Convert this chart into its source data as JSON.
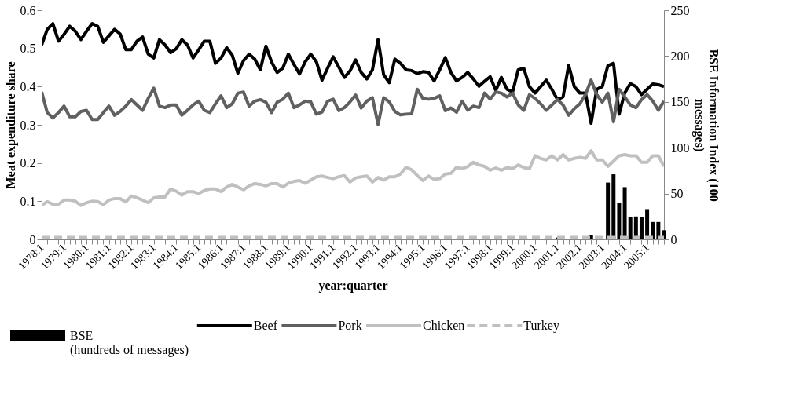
{
  "chart_data": {
    "type": "line",
    "categories": [
      "1978:1",
      null,
      null,
      null,
      "1979:1",
      null,
      null,
      null,
      "1980:1",
      null,
      null,
      null,
      "1981:1",
      null,
      null,
      null,
      "1982:1",
      null,
      null,
      null,
      "1983:1",
      null,
      null,
      null,
      "1984:1",
      null,
      null,
      null,
      "1985:1",
      null,
      null,
      null,
      "1986:1",
      null,
      null,
      null,
      "1987:1",
      null,
      null,
      null,
      "1988:1",
      null,
      null,
      null,
      "1989:1",
      null,
      null,
      null,
      "1990:1",
      null,
      null,
      null,
      "1991:1",
      null,
      null,
      null,
      "1992:1",
      null,
      null,
      null,
      "1993:1",
      null,
      null,
      null,
      "1994:1",
      null,
      null,
      null,
      "1995:1",
      null,
      null,
      null,
      "1996:1",
      null,
      null,
      null,
      "1997:1",
      null,
      null,
      null,
      "1998:1",
      null,
      null,
      null,
      "1999:1",
      null,
      null,
      null,
      "2000:1",
      null,
      null,
      null,
      "2001:1",
      null,
      null,
      null,
      "2002:1",
      null,
      null,
      null,
      "2003:1",
      null,
      null,
      null,
      "2004:1",
      null,
      null,
      null,
      "2005:1",
      null,
      null,
      null
    ],
    "xlabel": "year:quarter",
    "ylabel": "Meat expenditure share",
    "y2label": "BSE Information Index (100 messages)",
    "ylim": [
      0,
      0.6
    ],
    "yticks": [
      0,
      0.1,
      0.2,
      0.3,
      0.4,
      0.5,
      0.6
    ],
    "y2lim": [
      0,
      250
    ],
    "y2ticks": [
      0,
      50,
      100,
      150,
      200,
      250
    ],
    "legend": "bottom",
    "line_style": "solid",
    "series": [
      {
        "name": "BSE\n(hundreds of messages)",
        "type": "bar",
        "axis": "y2",
        "color": "#000000",
        "values": [
          0,
          0,
          0,
          0,
          0,
          0,
          0,
          0,
          0,
          0,
          0,
          0,
          0,
          0,
          0,
          0,
          0,
          0,
          0,
          0,
          0,
          0,
          0,
          0,
          0,
          0,
          0,
          0,
          0,
          0,
          0,
          0,
          0,
          0,
          0,
          0,
          0,
          0,
          0,
          0,
          0,
          0,
          0,
          0,
          0,
          0,
          0,
          0,
          0,
          0,
          0,
          0,
          0,
          0,
          0,
          0,
          0,
          0,
          0,
          0,
          0,
          0,
          0,
          0,
          0,
          0,
          0,
          0,
          0,
          0,
          0,
          0,
          0,
          0,
          0,
          0,
          0,
          0,
          0,
          0,
          0,
          0,
          0,
          0,
          0,
          0,
          0,
          0,
          0,
          0,
          0,
          0,
          2,
          0,
          0,
          0,
          0,
          0,
          5,
          0,
          0,
          62,
          71,
          40,
          57,
          24,
          25,
          24,
          33,
          19,
          19,
          10
        ]
      },
      {
        "name": "Beef",
        "type": "line",
        "color": "#000000",
        "values": [
          0.509,
          0.55,
          0.565,
          0.519,
          0.537,
          0.558,
          0.545,
          0.523,
          0.545,
          0.565,
          0.558,
          0.516,
          0.533,
          0.55,
          0.538,
          0.497,
          0.497,
          0.519,
          0.53,
          0.485,
          0.475,
          0.523,
          0.509,
          0.489,
          0.499,
          0.523,
          0.509,
          0.475,
          0.496,
          0.519,
          0.519,
          0.461,
          0.475,
          0.502,
          0.482,
          0.435,
          0.468,
          0.485,
          0.472,
          0.444,
          0.506,
          0.465,
          0.437,
          0.448,
          0.485,
          0.458,
          0.433,
          0.465,
          0.485,
          0.465,
          0.417,
          0.448,
          0.478,
          0.451,
          0.424,
          0.441,
          0.47,
          0.437,
          0.42,
          0.444,
          0.523,
          0.431,
          0.41,
          0.472,
          0.461,
          0.444,
          0.442,
          0.434,
          0.439,
          0.437,
          0.415,
          0.444,
          0.476,
          0.437,
          0.415,
          0.424,
          0.437,
          0.42,
          0.401,
          0.414,
          0.426,
          0.39,
          0.424,
          0.393,
          0.386,
          0.444,
          0.448,
          0.4,
          0.383,
          0.4,
          0.417,
          0.393,
          0.366,
          0.373,
          0.456,
          0.4,
          0.383,
          0.383,
          0.304,
          0.393,
          0.4,
          0.455,
          0.461,
          0.328,
          0.383,
          0.408,
          0.4,
          0.379,
          0.393,
          0.407,
          0.405,
          0.4
        ]
      },
      {
        "name": "Pork",
        "type": "line",
        "color": "#606060",
        "values": [
          0.386,
          0.332,
          0.318,
          0.332,
          0.349,
          0.321,
          0.321,
          0.335,
          0.338,
          0.314,
          0.314,
          0.332,
          0.349,
          0.325,
          0.335,
          0.349,
          0.366,
          0.352,
          0.338,
          0.369,
          0.396,
          0.349,
          0.345,
          0.352,
          0.352,
          0.325,
          0.338,
          0.352,
          0.362,
          0.338,
          0.332,
          0.355,
          0.376,
          0.345,
          0.355,
          0.383,
          0.386,
          0.349,
          0.362,
          0.366,
          0.359,
          0.332,
          0.359,
          0.367,
          0.383,
          0.345,
          0.352,
          0.362,
          0.36,
          0.328,
          0.333,
          0.362,
          0.367,
          0.337,
          0.345,
          0.36,
          0.378,
          0.344,
          0.362,
          0.371,
          0.301,
          0.371,
          0.36,
          0.335,
          0.326,
          0.328,
          0.329,
          0.393,
          0.369,
          0.367,
          0.369,
          0.376,
          0.337,
          0.344,
          0.333,
          0.362,
          0.338,
          0.349,
          0.345,
          0.383,
          0.367,
          0.386,
          0.383,
          0.373,
          0.383,
          0.352,
          0.338,
          0.379,
          0.369,
          0.355,
          0.338,
          0.352,
          0.366,
          0.352,
          0.325,
          0.342,
          0.355,
          0.379,
          0.417,
          0.379,
          0.359,
          0.383,
          0.308,
          0.393,
          0.373,
          0.352,
          0.345,
          0.366,
          0.379,
          0.362,
          0.338,
          0.362
        ]
      },
      {
        "name": "Chicken",
        "type": "line",
        "color": "#c0c0c0",
        "values": [
          0.089,
          0.099,
          0.092,
          0.092,
          0.103,
          0.103,
          0.1,
          0.089,
          0.096,
          0.1,
          0.099,
          0.091,
          0.103,
          0.107,
          0.107,
          0.098,
          0.114,
          0.109,
          0.103,
          0.096,
          0.109,
          0.111,
          0.111,
          0.132,
          0.126,
          0.116,
          0.125,
          0.125,
          0.12,
          0.128,
          0.132,
          0.132,
          0.125,
          0.137,
          0.144,
          0.137,
          0.13,
          0.14,
          0.146,
          0.144,
          0.14,
          0.146,
          0.146,
          0.137,
          0.147,
          0.152,
          0.154,
          0.147,
          0.155,
          0.164,
          0.166,
          0.162,
          0.159,
          0.164,
          0.167,
          0.15,
          0.161,
          0.164,
          0.166,
          0.15,
          0.162,
          0.155,
          0.164,
          0.164,
          0.171,
          0.189,
          0.182,
          0.167,
          0.154,
          0.166,
          0.157,
          0.159,
          0.171,
          0.173,
          0.189,
          0.185,
          0.191,
          0.202,
          0.195,
          0.191,
          0.181,
          0.187,
          0.181,
          0.188,
          0.185,
          0.195,
          0.188,
          0.185,
          0.219,
          0.212,
          0.208,
          0.219,
          0.208,
          0.222,
          0.208,
          0.212,
          0.215,
          0.212,
          0.232,
          0.208,
          0.208,
          0.191,
          0.205,
          0.219,
          0.222,
          0.219,
          0.219,
          0.202,
          0.202,
          0.219,
          0.219,
          0.191
        ]
      },
      {
        "name": "Turkey",
        "type": "line",
        "color": "#c0c0c0",
        "line_style": "dashed",
        "values": [
          0.005,
          0.005,
          0.005,
          0.005,
          0.005,
          0.005,
          0.005,
          0.005,
          0.005,
          0.005,
          0.005,
          0.005,
          0.005,
          0.005,
          0.005,
          0.005,
          0.005,
          0.005,
          0.005,
          0.005,
          0.005,
          0.005,
          0.005,
          0.005,
          0.005,
          0.005,
          0.005,
          0.005,
          0.005,
          0.005,
          0.005,
          0.005,
          0.005,
          0.005,
          0.005,
          0.005,
          0.005,
          0.005,
          0.005,
          0.005,
          0.005,
          0.005,
          0.005,
          0.005,
          0.005,
          0.005,
          0.005,
          0.005,
          0.005,
          0.005,
          0.005,
          0.005,
          0.005,
          0.005,
          0.005,
          0.005,
          0.005,
          0.005,
          0.005,
          0.005,
          0.005,
          0.005,
          0.005,
          0.005,
          0.005,
          0.005,
          0.005,
          0.005,
          0.005,
          0.005,
          0.005,
          0.005,
          0.005,
          0.005,
          0.005,
          0.005,
          0.005,
          0.005,
          0.005,
          0.005,
          0.005,
          0.005,
          0.005,
          0.005,
          0.005,
          0.005,
          0.005,
          0.005,
          0.005,
          0.005,
          0.005,
          0.005,
          0.005,
          0.005,
          0.005,
          0.005,
          0.005,
          0.005,
          0.005,
          0.005,
          0.005,
          0.005,
          0.005,
          0.005,
          0.005,
          0.005,
          0.005,
          0.005,
          0.005,
          0.005,
          0.005,
          0.005
        ]
      }
    ]
  }
}
